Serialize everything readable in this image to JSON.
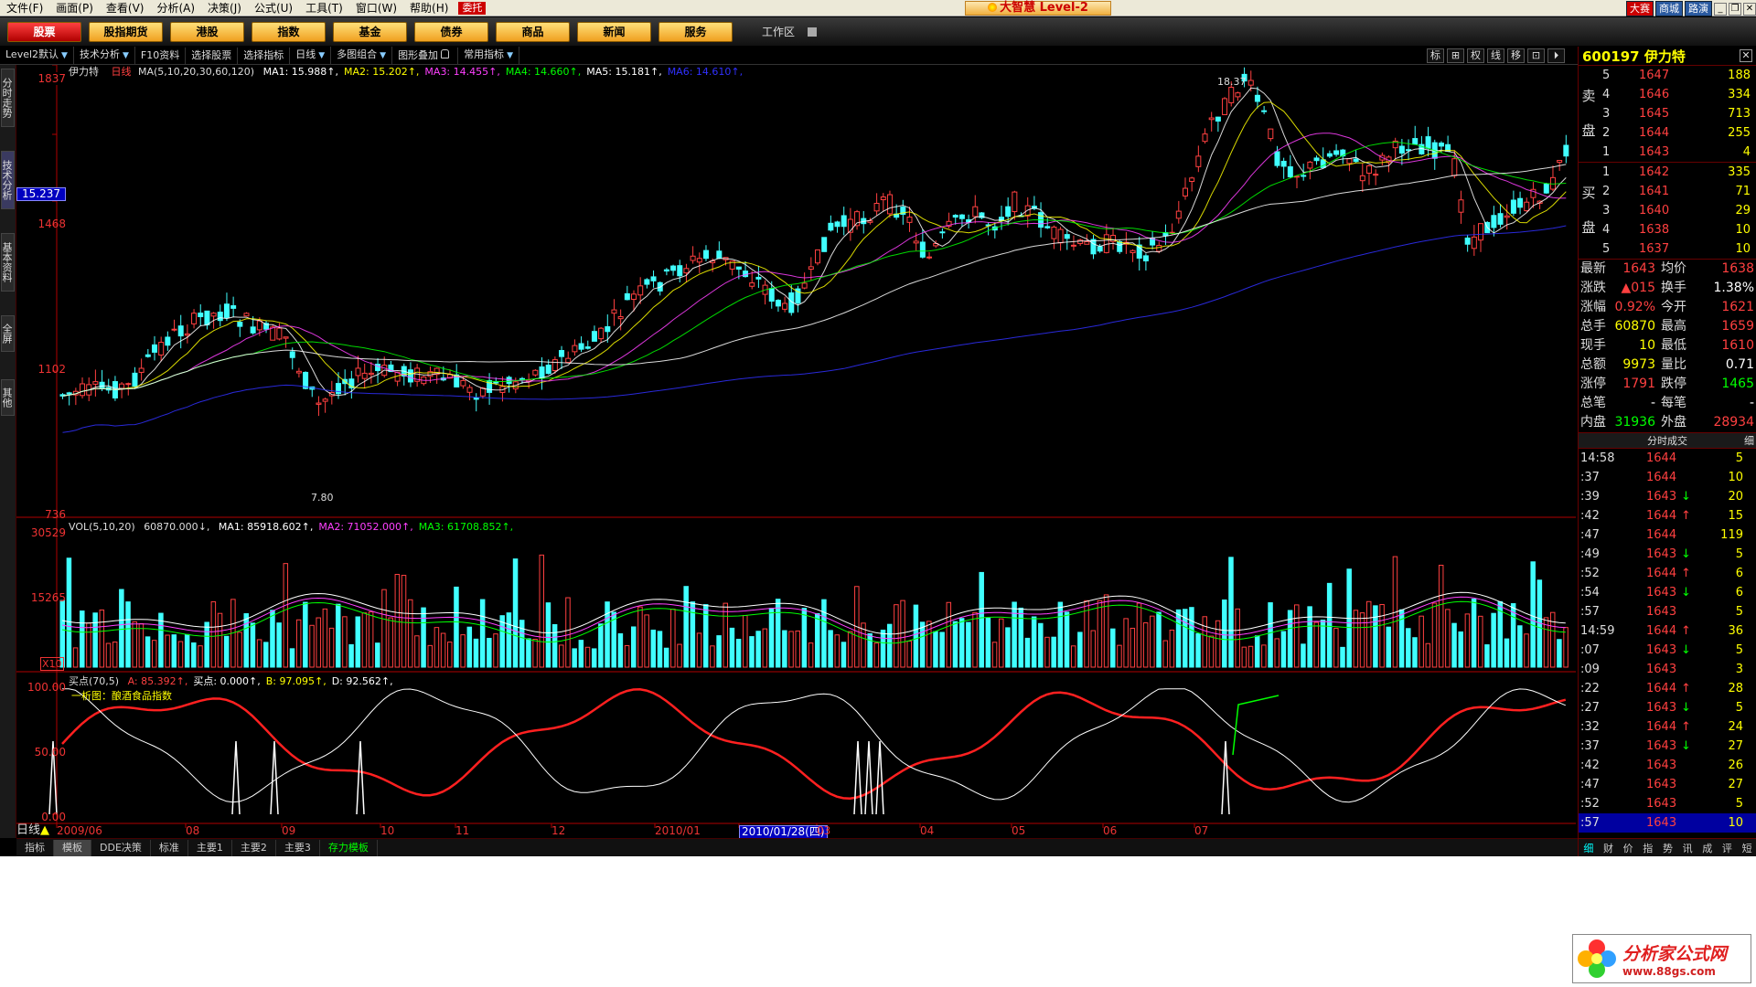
{
  "menu": {
    "items": [
      "文件(F)",
      "画面(P)",
      "查看(V)",
      "分析(A)",
      "决策(J)",
      "公式(U)",
      "工具(T)",
      "窗口(W)",
      "帮助(H)"
    ],
    "entrust": "委托",
    "app_title": "大智慧 Level-2",
    "right_buttons": [
      "大赛",
      "商城",
      "路演"
    ]
  },
  "nav": {
    "buttons": [
      "股票",
      "股指期货",
      "港股",
      "指数",
      "基金",
      "债券",
      "商品",
      "新闻",
      "服务"
    ],
    "active": "股票",
    "workspace": "工作区"
  },
  "toolbar": {
    "items": [
      "Level2默认",
      "技术分析",
      "F10资料",
      "选择股票",
      "选择指标",
      "日线",
      "多图组合",
      "图形叠加",
      "常用指标"
    ],
    "icons": [
      "标",
      "⊞",
      "权",
      "线",
      "移",
      "⊡",
      "⏵"
    ]
  },
  "left_tabs": [
    "分时走势",
    "技术分析",
    "基本资料",
    "全屏",
    "其他"
  ],
  "chart_data": [
    {
      "type": "candlestick",
      "title": "伊力特",
      "period": "日线",
      "ma_header": "MA(5,10,20,30,60,120)",
      "ma_values": [
        {
          "name": "MA1",
          "value": "15.988",
          "color": "#ffffff"
        },
        {
          "name": "MA2",
          "value": "15.202",
          "color": "#ffff00"
        },
        {
          "name": "MA3",
          "value": "14.455",
          "color": "#ff40ff"
        },
        {
          "name": "MA4",
          "value": "14.660",
          "color": "#00ff00"
        },
        {
          "name": "MA5",
          "value": "15.181",
          "color": "#ffffff"
        },
        {
          "name": "MA6",
          "value": "14.610",
          "color": "#3030ff"
        }
      ],
      "y_ticks": [
        "1837",
        "1468",
        "1102",
        "736"
      ],
      "crosshair_value": "15.237",
      "high_label": "18.37",
      "low_label": "7.80",
      "up_color": "#ff4040",
      "down_color": "#40ffff"
    },
    {
      "type": "bar",
      "title": "VOL(5,10,20)",
      "vol": "60870.000",
      "ma_values": [
        {
          "name": "MA1",
          "value": "85918.602",
          "color": "#ffffff"
        },
        {
          "name": "MA2",
          "value": "71052.000",
          "color": "#ff40ff"
        },
        {
          "name": "MA3",
          "value": "61708.852",
          "color": "#00ff00"
        }
      ],
      "y_ticks": [
        "30529",
        "15265"
      ],
      "unit": "X10"
    },
    {
      "type": "line",
      "title": "买点(70,5)",
      "values": [
        {
          "name": "A",
          "value": "85.392",
          "color": "#ff4040"
        },
        {
          "name": "买点",
          "value": "0.000",
          "color": "#ffffff"
        },
        {
          "name": "B",
          "value": "97.095",
          "color": "#ffff00"
        },
        {
          "name": "D",
          "value": "92.562",
          "color": "#ffffff"
        }
      ],
      "subtitle": "一析图：酿酒食品指数",
      "y_ticks": [
        "100.00",
        "50.00",
        "0.00"
      ]
    }
  ],
  "x_axis": {
    "period_label": "日线",
    "labels": [
      "2009/06",
      "08",
      "09",
      "10",
      "11",
      "12",
      "2010/01",
      "2010/01/28(四)",
      "03",
      "04",
      "05",
      "06",
      "07"
    ]
  },
  "bottom_tabs": [
    "指标",
    "模板",
    "DDE决策",
    "标准",
    "主要1",
    "主要2",
    "主要3",
    "存力模板"
  ],
  "stock": {
    "code_name": "600197 伊力特",
    "sell_label": [
      "卖",
      "盘"
    ],
    "buy_label": [
      "买",
      "盘"
    ],
    "asks": [
      {
        "n": "5",
        "price": "1647",
        "vol": "188"
      },
      {
        "n": "4",
        "price": "1646",
        "vol": "334"
      },
      {
        "n": "3",
        "price": "1645",
        "vol": "713"
      },
      {
        "n": "2",
        "price": "1644",
        "vol": "255"
      },
      {
        "n": "1",
        "price": "1643",
        "vol": "4"
      }
    ],
    "bids": [
      {
        "n": "1",
        "price": "1642",
        "vol": "335"
      },
      {
        "n": "2",
        "price": "1641",
        "vol": "71"
      },
      {
        "n": "3",
        "price": "1640",
        "vol": "29"
      },
      {
        "n": "4",
        "price": "1638",
        "vol": "10"
      },
      {
        "n": "5",
        "price": "1637",
        "vol": "10"
      }
    ],
    "stats": [
      {
        "l1": "最新",
        "v1": "1643",
        "c1": "#ff4040",
        "l2": "均价",
        "v2": "1638",
        "c2": "#ff4040"
      },
      {
        "l1": "涨跌",
        "v1": "▲015",
        "c1": "#ff4040",
        "l2": "换手",
        "v2": "1.38%",
        "c2": "#ffffff"
      },
      {
        "l1": "涨幅",
        "v1": "0.92%",
        "c1": "#ff4040",
        "l2": "今开",
        "v2": "1621",
        "c2": "#ff4040"
      },
      {
        "l1": "总手",
        "v1": "60870",
        "c1": "#ffff00",
        "l2": "最高",
        "v2": "1659",
        "c2": "#ff4040"
      },
      {
        "l1": "现手",
        "v1": "10",
        "c1": "#ffff00",
        "l2": "最低",
        "v2": "1610",
        "c2": "#ff4040"
      },
      {
        "l1": "总额",
        "v1": "9973",
        "c1": "#ffff00",
        "l2": "量比",
        "v2": "0.71",
        "c2": "#ffffff"
      },
      {
        "l1": "涨停",
        "v1": "1791",
        "c1": "#ff4040",
        "l2": "跌停",
        "v2": "1465",
        "c2": "#00ff00"
      },
      {
        "l1": "总笔",
        "v1": "-",
        "c1": "#ffffff",
        "l2": "每笔",
        "v2": "-",
        "c2": "#ffffff"
      },
      {
        "l1": "内盘",
        "v1": "31936",
        "c1": "#00ff00",
        "l2": "外盘",
        "v2": "28934",
        "c2": "#ff4040"
      }
    ],
    "ticks_title": "分时成交",
    "ticks_detail": "细",
    "ticks": [
      {
        "t": "14:58",
        "p": "1644",
        "a": "",
        "v": "5"
      },
      {
        "t": ":37",
        "p": "1644",
        "a": "",
        "v": "10"
      },
      {
        "t": ":39",
        "p": "1643",
        "a": "↓",
        "v": "20"
      },
      {
        "t": ":42",
        "p": "1644",
        "a": "↑",
        "v": "15"
      },
      {
        "t": ":47",
        "p": "1644",
        "a": "",
        "v": "119"
      },
      {
        "t": ":49",
        "p": "1643",
        "a": "↓",
        "v": "5"
      },
      {
        "t": ":52",
        "p": "1644",
        "a": "↑",
        "v": "6"
      },
      {
        "t": ":54",
        "p": "1643",
        "a": "↓",
        "v": "6"
      },
      {
        "t": ":57",
        "p": "1643",
        "a": "",
        "v": "5"
      },
      {
        "t": "14:59",
        "p": "1644",
        "a": "↑",
        "v": "36"
      },
      {
        "t": ":07",
        "p": "1643",
        "a": "↓",
        "v": "5"
      },
      {
        "t": ":09",
        "p": "1643",
        "a": "",
        "v": "3"
      },
      {
        "t": ":22",
        "p": "1644",
        "a": "↑",
        "v": "28"
      },
      {
        "t": ":27",
        "p": "1643",
        "a": "↓",
        "v": "5"
      },
      {
        "t": ":32",
        "p": "1644",
        "a": "↑",
        "v": "24"
      },
      {
        "t": ":37",
        "p": "1643",
        "a": "↓",
        "v": "27"
      },
      {
        "t": ":42",
        "p": "1643",
        "a": "",
        "v": "26"
      },
      {
        "t": ":47",
        "p": "1643",
        "a": "",
        "v": "27"
      },
      {
        "t": ":52",
        "p": "1643",
        "a": "",
        "v": "5"
      },
      {
        "t": ":57",
        "p": "1643",
        "a": "",
        "v": "10"
      }
    ],
    "bottom_tabs": [
      "细",
      "财",
      "价",
      "指",
      "势",
      "讯",
      "成",
      "评",
      "短"
    ]
  },
  "watermark": {
    "line1": "分析家公式网",
    "line2": "www.88gs.com"
  }
}
